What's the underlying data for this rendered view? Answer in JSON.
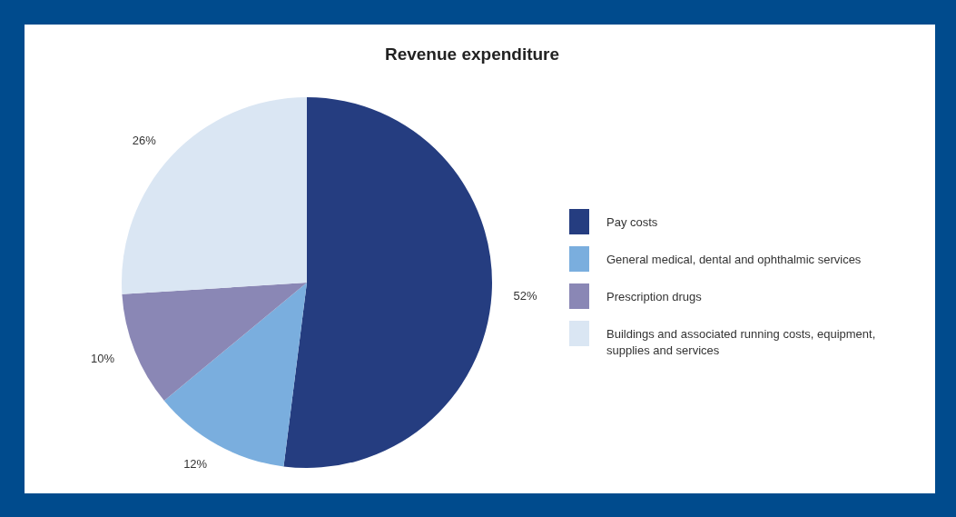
{
  "chart_data": {
    "type": "pie",
    "title": "Revenue expenditure",
    "categories": [
      "Pay costs",
      "General medical, dental and ophthalmic services",
      "Prescription drugs",
      "Buildings and associated running costs, equipment, supplies and services"
    ],
    "values": [
      52,
      12,
      10,
      26
    ],
    "colors": [
      "#253d80",
      "#7aaede",
      "#8a87b5",
      "#dae6f3"
    ],
    "value_labels": [
      "52%",
      "12%",
      "10%",
      "26%"
    ],
    "legend": "right"
  }
}
